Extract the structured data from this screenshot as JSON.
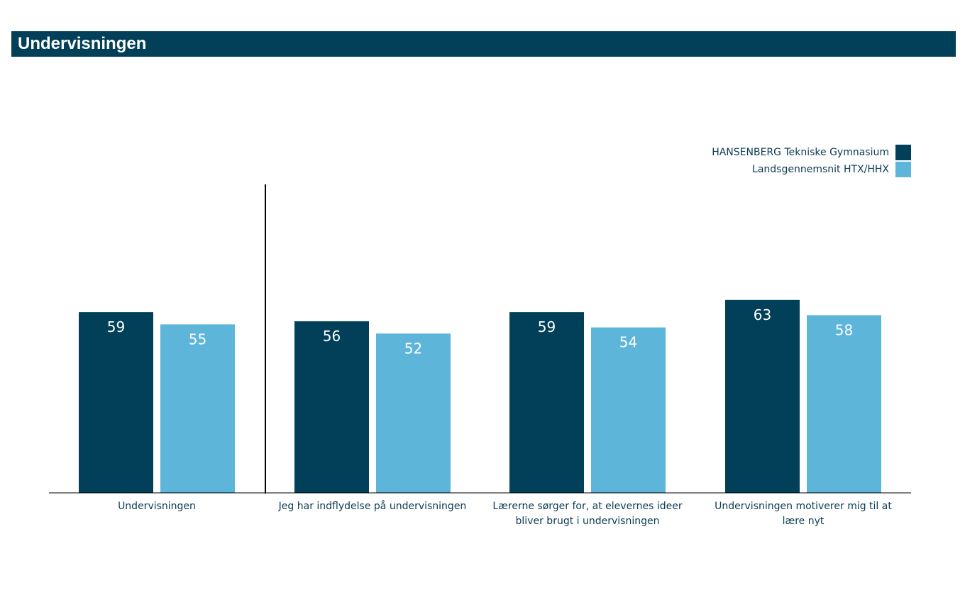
{
  "header": {
    "title": "Undervisningen"
  },
  "legend": [
    {
      "label": "HANSENBERG Tekniske Gymnasium",
      "color": "#024059"
    },
    {
      "label": "Landsgennemsnit HTX/HHX",
      "color": "#5eb5da"
    }
  ],
  "chart_data": {
    "type": "bar",
    "title": "",
    "xlabel": "",
    "ylabel": "",
    "ylim": [
      0,
      100
    ],
    "grid": false,
    "legend_position": "top-right",
    "categories": [
      [
        "Undervisningen"
      ],
      [
        "Jeg har indflydelse på undervisningen"
      ],
      [
        "Lærerne sørger for, at elevernes ideer",
        "bliver brugt i undervisningen"
      ],
      [
        "Undervisningen motiverer mig til at",
        "lære nyt"
      ]
    ],
    "series": [
      {
        "name": "HANSENBERG Tekniske Gymnasium",
        "color": "#024059",
        "label_color": "#ffffff",
        "values": [
          59,
          56,
          59,
          63
        ]
      },
      {
        "name": "Landsgennemsnit HTX/HHX",
        "color": "#5eb5da",
        "label_color": "#ffffff",
        "values": [
          55,
          52,
          54,
          58
        ]
      }
    ]
  }
}
